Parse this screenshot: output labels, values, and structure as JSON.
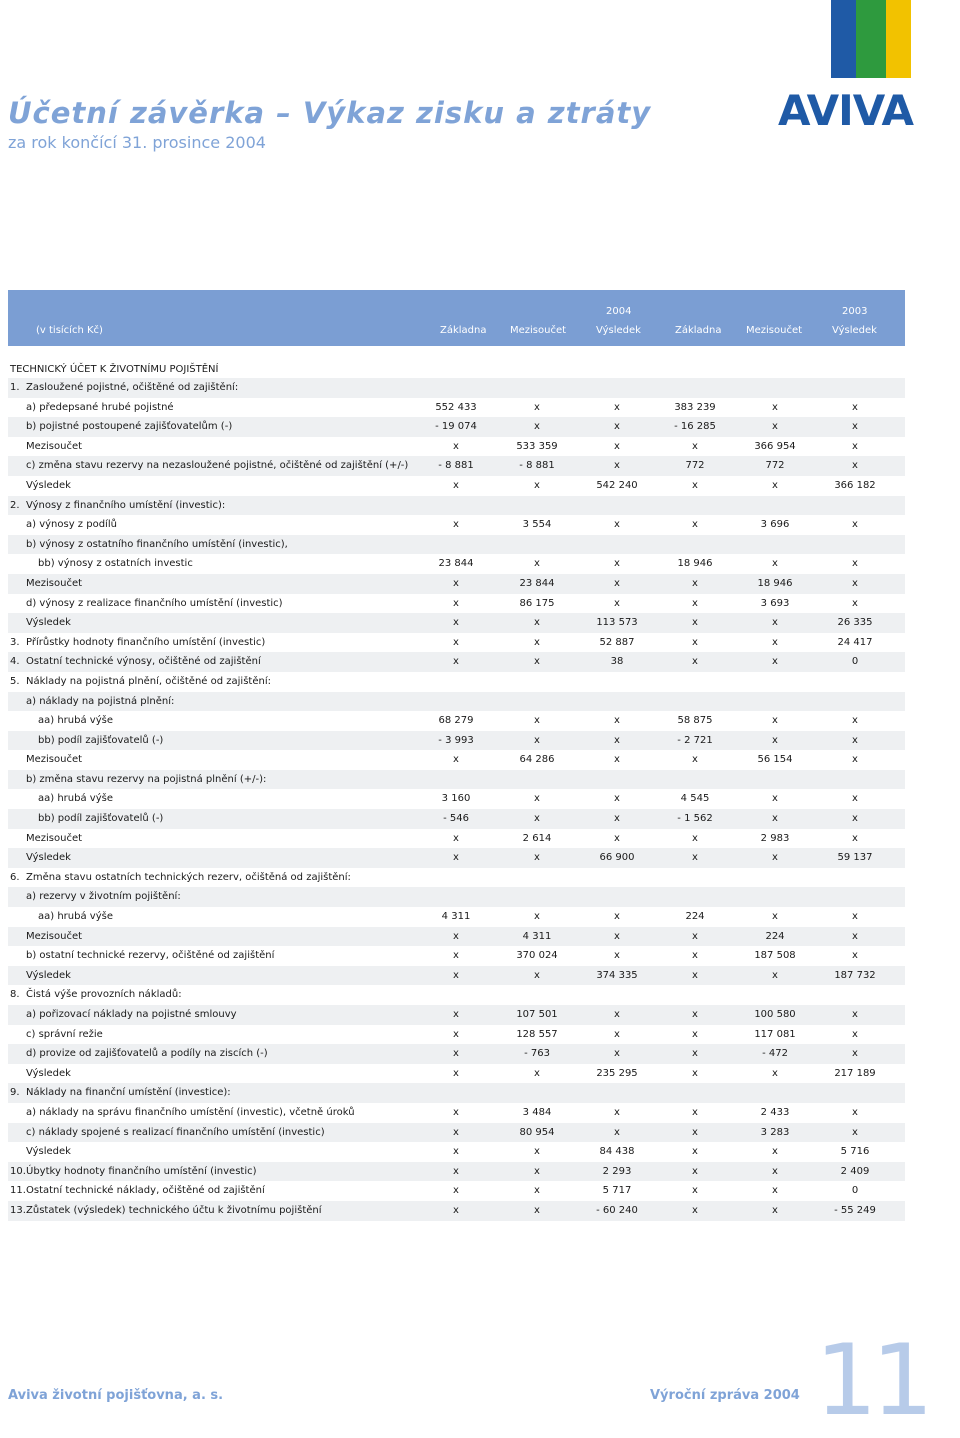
{
  "header": {
    "title": "Účetní závěrka – Výkaz zisku a ztráty",
    "subtitle": "za rok končící 31. prosince 2004",
    "logo_text": "AVIVA"
  },
  "table_header": {
    "unit_label": "(v tisících Kč)",
    "year_2004": "2004",
    "year_2003": "2003",
    "columns": [
      "Základna",
      "Mezisoučet",
      "Výsledek",
      "Základna",
      "Mezisoučet",
      "Výsledek"
    ]
  },
  "section_title": "TECHNICKÝ ÚČET K ŽIVOTNÍMU POJIŠTĚNÍ",
  "rows": [
    {
      "num": "1.",
      "label": "Zasloužené pojistné, očištěné od zajištění:",
      "indent": 0,
      "vals": [
        "",
        "",
        "",
        "",
        "",
        ""
      ]
    },
    {
      "num": "",
      "label": "a) předepsané hrubé pojistné",
      "indent": 1,
      "vals": [
        "552 433",
        "x",
        "x",
        "383 239",
        "x",
        "x"
      ]
    },
    {
      "num": "",
      "label": "b) pojistné postoupené zajišťovatelům (-)",
      "indent": 1,
      "vals": [
        "- 19 074",
        "x",
        "x",
        "- 16 285",
        "x",
        "x"
      ]
    },
    {
      "num": "",
      "label": "Mezisoučet",
      "indent": 1,
      "vals": [
        "x",
        "533 359",
        "x",
        "x",
        "366 954",
        "x"
      ]
    },
    {
      "num": "",
      "label": "c) změna stavu rezervy na nezasloužené pojistné, očištěné od zajištění (+/-)",
      "indent": 1,
      "vals": [
        "- 8 881",
        "- 8 881",
        "x",
        "772",
        "772",
        "x"
      ]
    },
    {
      "num": "",
      "label": "Výsledek",
      "indent": 1,
      "vals": [
        "x",
        "x",
        "542 240",
        "x",
        "x",
        "366 182"
      ]
    },
    {
      "num": "2.",
      "label": "Výnosy z finančního umístění (investic):",
      "indent": 0,
      "vals": [
        "",
        "",
        "",
        "",
        "",
        ""
      ]
    },
    {
      "num": "",
      "label": "a) výnosy z podílů",
      "indent": 1,
      "vals": [
        "x",
        "3 554",
        "x",
        "x",
        "3 696",
        "x"
      ]
    },
    {
      "num": "",
      "label": "b) výnosy z ostatního finančního umístění (investic),",
      "indent": 1,
      "vals": [
        "",
        "",
        "",
        "",
        "",
        ""
      ]
    },
    {
      "num": "",
      "label": "bb) výnosy z ostatních investic",
      "indent": 2,
      "vals": [
        "23 844",
        "x",
        "x",
        "18 946",
        "x",
        "x"
      ]
    },
    {
      "num": "",
      "label": "Mezisoučet",
      "indent": 1,
      "vals": [
        "x",
        "23 844",
        "x",
        "x",
        "18 946",
        "x"
      ]
    },
    {
      "num": "",
      "label": "d) výnosy z realizace finančního umístění (investic)",
      "indent": 1,
      "vals": [
        "x",
        "86 175",
        "x",
        "x",
        "3 693",
        "x"
      ]
    },
    {
      "num": "",
      "label": "Výsledek",
      "indent": 1,
      "vals": [
        "x",
        "x",
        "113 573",
        "x",
        "x",
        "26 335"
      ]
    },
    {
      "num": "3.",
      "label": "Přírůstky hodnoty finančního umístění (investic)",
      "indent": 0,
      "vals": [
        "x",
        "x",
        "52 887",
        "x",
        "x",
        "24 417"
      ]
    },
    {
      "num": "4.",
      "label": "Ostatní technické výnosy, očištěné od zajištění",
      "indent": 0,
      "vals": [
        "x",
        "x",
        "38",
        "x",
        "x",
        "0"
      ]
    },
    {
      "num": "5.",
      "label": "Náklady na pojistná plnění, očištěné od zajištění:",
      "indent": 0,
      "vals": [
        "",
        "",
        "",
        "",
        "",
        ""
      ]
    },
    {
      "num": "",
      "label": "a) náklady na pojistná plnění:",
      "indent": 1,
      "vals": [
        "",
        "",
        "",
        "",
        "",
        ""
      ]
    },
    {
      "num": "",
      "label": "aa) hrubá výše",
      "indent": 2,
      "vals": [
        "68 279",
        "x",
        "x",
        "58 875",
        "x",
        "x"
      ]
    },
    {
      "num": "",
      "label": "bb) podíl zajišťovatelů (-)",
      "indent": 2,
      "vals": [
        "- 3 993",
        "x",
        "x",
        "- 2 721",
        "x",
        "x"
      ]
    },
    {
      "num": "",
      "label": "Mezisoučet",
      "indent": 1,
      "vals": [
        "x",
        "64 286",
        "x",
        "x",
        "56 154",
        "x"
      ]
    },
    {
      "num": "",
      "label": "b) změna stavu rezervy na pojistná plnění (+/-):",
      "indent": 1,
      "vals": [
        "",
        "",
        "",
        "",
        "",
        ""
      ]
    },
    {
      "num": "",
      "label": "aa) hrubá výše",
      "indent": 2,
      "vals": [
        "3 160",
        "x",
        "x",
        "4 545",
        "x",
        "x"
      ]
    },
    {
      "num": "",
      "label": "bb) podíl zajišťovatelů (-)",
      "indent": 2,
      "vals": [
        "- 546",
        "x",
        "x",
        "- 1 562",
        "x",
        "x"
      ]
    },
    {
      "num": "",
      "label": "Mezisoučet",
      "indent": 1,
      "vals": [
        "x",
        "2 614",
        "x",
        "x",
        "2 983",
        "x"
      ]
    },
    {
      "num": "",
      "label": "Výsledek",
      "indent": 1,
      "vals": [
        "x",
        "x",
        "66 900",
        "x",
        "x",
        "59 137"
      ]
    },
    {
      "num": "6.",
      "label": "Změna stavu ostatních technických rezerv, očištěná od zajištění:",
      "indent": 0,
      "vals": [
        "",
        "",
        "",
        "",
        "",
        ""
      ]
    },
    {
      "num": "",
      "label": "a) rezervy v životním pojištění:",
      "indent": 1,
      "vals": [
        "",
        "",
        "",
        "",
        "",
        ""
      ]
    },
    {
      "num": "",
      "label": "aa) hrubá výše",
      "indent": 2,
      "vals": [
        "4 311",
        "x",
        "x",
        "224",
        "x",
        "x"
      ]
    },
    {
      "num": "",
      "label": "Mezisoučet",
      "indent": 1,
      "vals": [
        "x",
        "4 311",
        "x",
        "x",
        "224",
        "x"
      ]
    },
    {
      "num": "",
      "label": "b) ostatní technické rezervy, očištěné od zajištění",
      "indent": 1,
      "vals": [
        "x",
        "370 024",
        "x",
        "x",
        "187 508",
        "x"
      ]
    },
    {
      "num": "",
      "label": "Výsledek",
      "indent": 1,
      "vals": [
        "x",
        "x",
        "374 335",
        "x",
        "x",
        "187 732"
      ]
    },
    {
      "num": "8.",
      "label": "Čistá výše provozních nákladů:",
      "indent": 0,
      "vals": [
        "",
        "",
        "",
        "",
        "",
        ""
      ]
    },
    {
      "num": "",
      "label": "a) pořizovací náklady na pojistné smlouvy",
      "indent": 1,
      "vals": [
        "x",
        "107 501",
        "x",
        "x",
        "100 580",
        "x"
      ]
    },
    {
      "num": "",
      "label": "c) správní režie",
      "indent": 1,
      "vals": [
        "x",
        "128 557",
        "x",
        "x",
        "117 081",
        "x"
      ]
    },
    {
      "num": "",
      "label": "d) provize od zajišťovatelů a podíly na ziscích (-)",
      "indent": 1,
      "vals": [
        "x",
        "- 763",
        "x",
        "x",
        "- 472",
        "x"
      ]
    },
    {
      "num": "",
      "label": "Výsledek",
      "indent": 1,
      "vals": [
        "x",
        "x",
        "235 295",
        "x",
        "x",
        "217 189"
      ]
    },
    {
      "num": "9.",
      "label": "Náklady na finanční umístění (investice):",
      "indent": 0,
      "vals": [
        "",
        "",
        "",
        "",
        "",
        ""
      ]
    },
    {
      "num": "",
      "label": "a) náklady na správu finančního umístění (investic), včetně úroků",
      "indent": 1,
      "vals": [
        "x",
        "3 484",
        "x",
        "x",
        "2 433",
        "x"
      ]
    },
    {
      "num": "",
      "label": "c) náklady spojené s realizací finančního umístění (investic)",
      "indent": 1,
      "vals": [
        "x",
        "80 954",
        "x",
        "x",
        "3 283",
        "x"
      ]
    },
    {
      "num": "",
      "label": "Výsledek",
      "indent": 1,
      "vals": [
        "x",
        "x",
        "84 438",
        "x",
        "x",
        "5 716"
      ]
    },
    {
      "num": "10.",
      "label": "Úbytky hodnoty finančního umístění (investic)",
      "indent": 0,
      "vals": [
        "x",
        "x",
        "2 293",
        "x",
        "x",
        "2 409"
      ]
    },
    {
      "num": "11.",
      "label": "Ostatní technické náklady, očištěné od zajištění",
      "indent": 0,
      "vals": [
        "x",
        "x",
        "5 717",
        "x",
        "x",
        "0"
      ]
    },
    {
      "num": "13.",
      "label": "Zůstatek (výsledek) technického účtu k životnímu pojištění",
      "indent": 0,
      "vals": [
        "x",
        "x",
        "- 60 240",
        "x",
        "x",
        "- 55 249"
      ]
    }
  ],
  "footer": {
    "company": "Aviva životní pojišťovna, a. s.",
    "report": "Výroční zpráva 2004",
    "page_number": "11"
  },
  "colors": {
    "accent_blue": "#7b9ed3",
    "title_blue": "#7fa3d7",
    "logo_blue": "#1f5aa6",
    "logo_yellow": "#f2c200",
    "logo_green": "#2e9a3e",
    "row_shade": "#eef0f2"
  }
}
